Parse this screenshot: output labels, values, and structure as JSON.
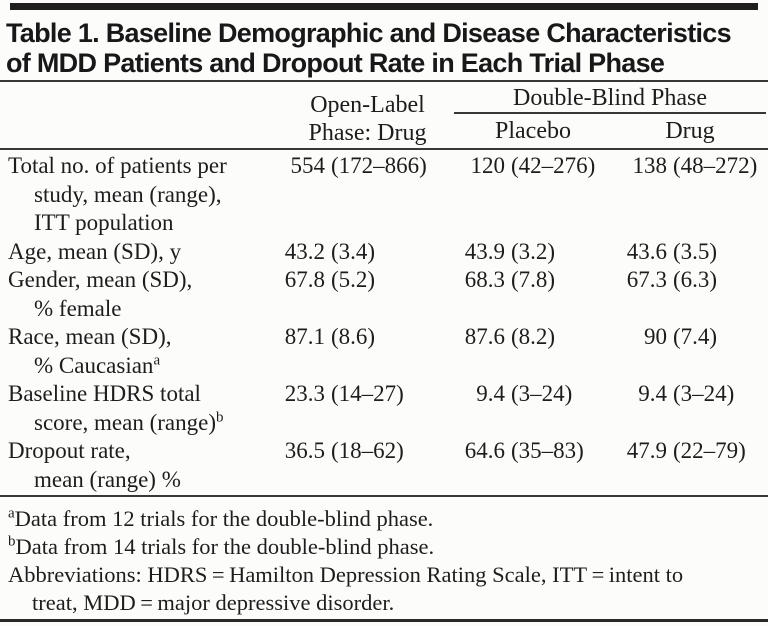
{
  "title": {
    "line1": "Table 1. Baseline Demographic and Disease Characteristics",
    "line2": "of MDD Patients and Dropout Rate in Each Trial Phase"
  },
  "header": {
    "open_label_line1": "Open-Label",
    "open_label_line2": "Phase: Drug",
    "double_blind": "Double-Blind Phase",
    "placebo": "Placebo",
    "drug": "Drug"
  },
  "table": {
    "rows": [
      {
        "label_lines": [
          "Total no. of patients per",
          "study, mean (range),",
          "ITT population"
        ],
        "values": [
          {
            "mean": "554",
            "range": "(172–866)"
          },
          {
            "mean": "120",
            "range": "(42–276)"
          },
          {
            "mean": "138",
            "range": "(48–272)"
          }
        ]
      },
      {
        "label_lines": [
          "Age, mean (SD), y"
        ],
        "values": [
          {
            "mean": "43.2",
            "range": "(3.4)"
          },
          {
            "mean": "43.9",
            "range": "(3.2)"
          },
          {
            "mean": "43.6",
            "range": "(3.5)"
          }
        ]
      },
      {
        "label_lines": [
          "Gender, mean (SD),",
          "% female"
        ],
        "values": [
          {
            "mean": "67.8",
            "range": "(5.2)"
          },
          {
            "mean": "68.3",
            "range": "(7.8)"
          },
          {
            "mean": "67.3",
            "range": "(6.3)"
          }
        ]
      },
      {
        "label_lines": [
          "Race, mean (SD),",
          "% Caucasian"
        ],
        "label_sup": "a",
        "values": [
          {
            "mean": "87.1",
            "range": "(8.6)"
          },
          {
            "mean": "87.6",
            "range": "(8.2)"
          },
          {
            "mean": "90",
            "range": "(7.4)"
          }
        ]
      },
      {
        "label_lines": [
          "Baseline HDRS total",
          "score, mean (range)"
        ],
        "label_sup": "b",
        "values": [
          {
            "mean": "23.3",
            "range": "(14–27)"
          },
          {
            "mean": "9.4",
            "range": "(3–24)"
          },
          {
            "mean": "9.4",
            "range": "(3–24)"
          }
        ]
      },
      {
        "label_lines": [
          "Dropout rate,",
          "mean (range) %"
        ],
        "values": [
          {
            "mean": "36.5",
            "range": "(18–62)"
          },
          {
            "mean": "64.6",
            "range": "(35–83)"
          },
          {
            "mean": "47.9",
            "range": "(22–79)"
          }
        ]
      }
    ]
  },
  "footnotes": {
    "a_sup": "a",
    "a_text": "Data from 12 trials for the double-blind phase.",
    "b_sup": "b",
    "b_text": "Data from 14 trials for the double-blind phase.",
    "abbrev_line1": "Abbreviations: HDRS = Hamilton Depression Rating Scale, ITT = intent to",
    "abbrev_line2": "treat, MDD = major depressive disorder."
  }
}
